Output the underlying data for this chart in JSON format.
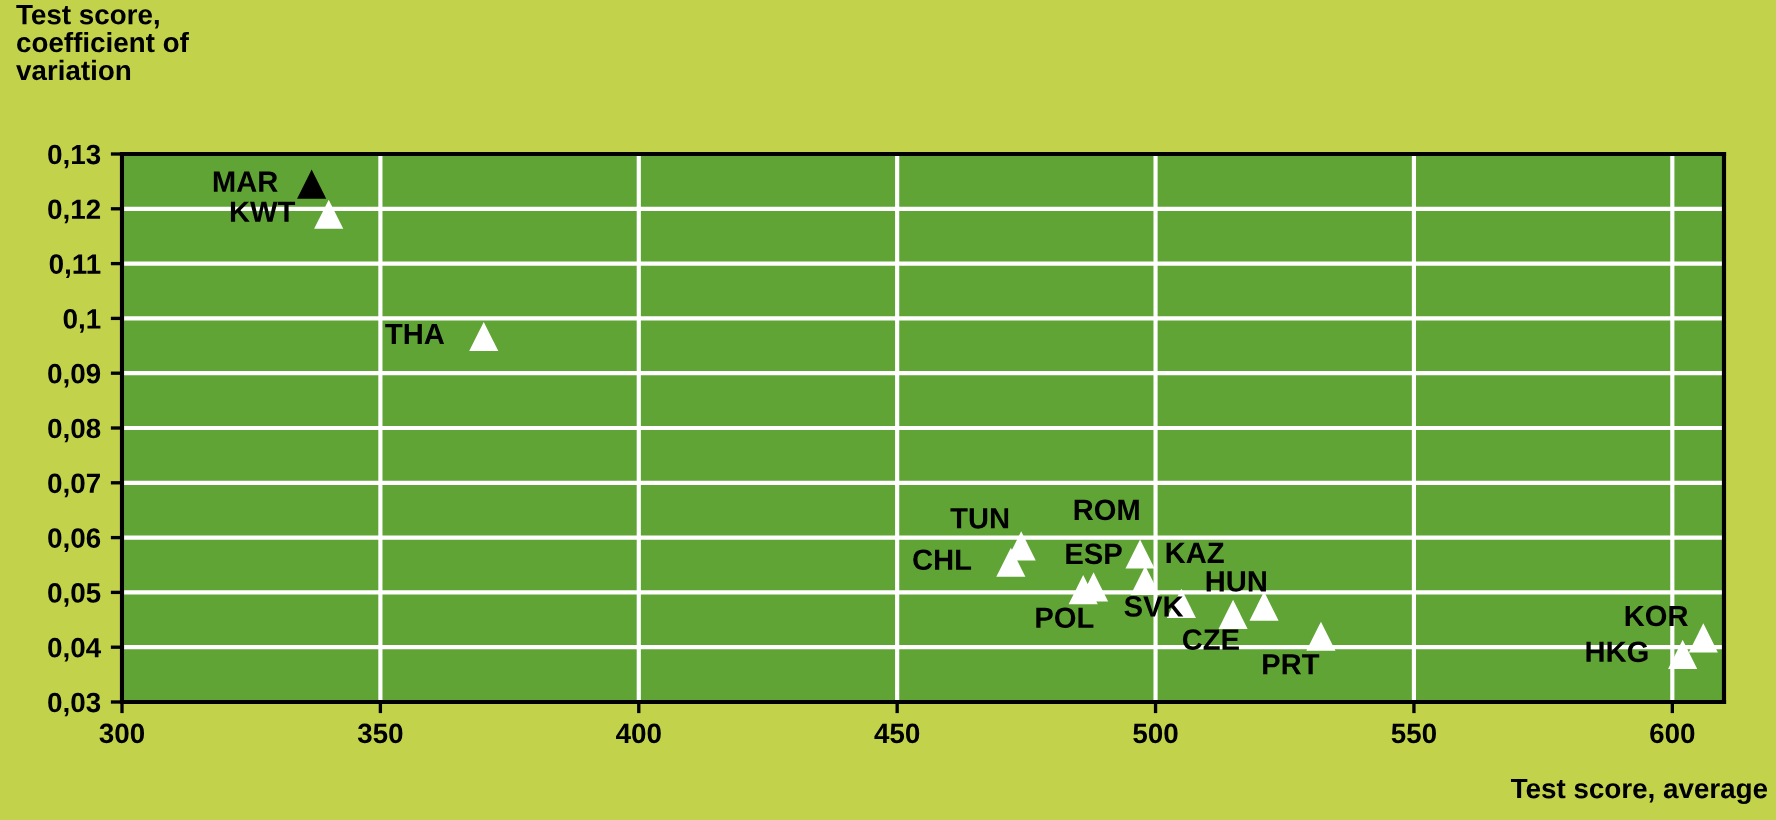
{
  "chart_data": {
    "type": "scatter",
    "xlabel": "Test score, average",
    "ylabel": "Test score,\ncoefficient of\nvariation",
    "x": [
      336.7,
      340,
      370,
      474,
      472,
      488,
      486,
      497,
      498,
      505,
      515,
      521,
      532,
      602,
      606
    ],
    "values": [
      0.1245,
      0.119,
      0.0967,
      0.0585,
      0.0555,
      0.051,
      0.0505,
      0.057,
      0.0522,
      0.048,
      0.046,
      0.0475,
      0.042,
      0.0387,
      0.0417
    ],
    "colors": [
      "#000000",
      "#ffffff",
      "#ffffff",
      "#ffffff",
      "#ffffff",
      "#ffffff",
      "#ffffff",
      "#ffffff",
      "#ffffff",
      "#ffffff",
      "#ffffff",
      "#ffffff",
      "#ffffff",
      "#ffffff",
      "#ffffff"
    ],
    "annotations": [
      {
        "text": "MAR",
        "x": 336.7,
        "y": 0.1245
      },
      {
        "text": "KWT",
        "x": 340,
        "y": 0.119
      },
      {
        "text": "THA",
        "x": 370,
        "y": 0.0967
      },
      {
        "text": "TUN",
        "x": 474,
        "y": 0.0585
      },
      {
        "text": "CHL",
        "x": 472,
        "y": 0.0555
      },
      {
        "text": "ESP",
        "x": 488,
        "y": 0.051
      },
      {
        "text": "POL",
        "x": 486,
        "y": 0.0505
      },
      {
        "text": "ROM",
        "x": 497,
        "y": 0.057
      },
      {
        "text": "KAZ",
        "x": 498,
        "y": 0.0522
      },
      {
        "text": "SVK",
        "x": 505,
        "y": 0.048
      },
      {
        "text": "CZE",
        "x": 515,
        "y": 0.046
      },
      {
        "text": "HUN",
        "x": 521,
        "y": 0.0475
      },
      {
        "text": "PRT",
        "x": 532,
        "y": 0.042
      },
      {
        "text": "HKG",
        "x": 602,
        "y": 0.0387
      },
      {
        "text": "KOR",
        "x": 606,
        "y": 0.0417
      }
    ],
    "xlim": [
      300,
      610
    ],
    "xticks": [
      300,
      350,
      400,
      450,
      500,
      550,
      600
    ],
    "ylim": [
      0.03,
      0.13
    ],
    "yticks": [
      {
        "value": 0.03,
        "label": "0,03"
      },
      {
        "value": 0.04,
        "label": "0,04"
      },
      {
        "value": 0.05,
        "label": "0,05"
      },
      {
        "value": 0.06,
        "label": "0,06"
      },
      {
        "value": 0.07,
        "label": "0,07"
      },
      {
        "value": 0.08,
        "label": "0,08"
      },
      {
        "value": 0.09,
        "label": "0,09"
      },
      {
        "value": 0.1,
        "label": "0,1"
      },
      {
        "value": 0.11,
        "label": "0,11"
      },
      {
        "value": 0.12,
        "label": "0,12"
      },
      {
        "value": 0.13,
        "label": "0,13"
      }
    ],
    "grid": true,
    "marker": "triangle",
    "legend": false
  }
}
